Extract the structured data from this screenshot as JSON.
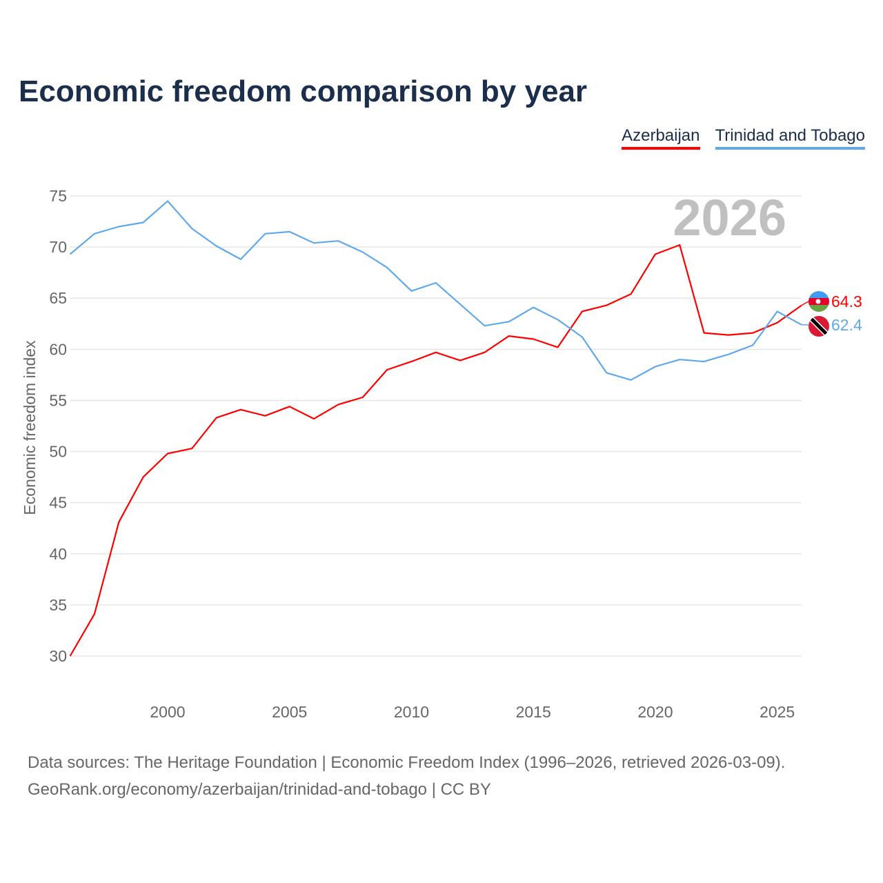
{
  "chart_data": {
    "type": "line",
    "title": "Economic freedom comparison by year",
    "xlabel": "",
    "ylabel": "Economic freedom index",
    "xlim": [
      1996,
      2026
    ],
    "ylim": [
      30,
      75
    ],
    "yticks": [
      30,
      35,
      40,
      45,
      50,
      55,
      60,
      65,
      70,
      75
    ],
    "xticks": [
      2000,
      2005,
      2010,
      2015,
      2020,
      2025
    ],
    "grid": true,
    "legend_position": "top-right",
    "year_label": "2026",
    "x": [
      1996,
      1997,
      1998,
      1999,
      2000,
      2001,
      2002,
      2003,
      2004,
      2005,
      2006,
      2007,
      2008,
      2009,
      2010,
      2011,
      2012,
      2013,
      2014,
      2015,
      2016,
      2017,
      2018,
      2019,
      2020,
      2021,
      2022,
      2023,
      2024,
      2025,
      2026
    ],
    "series": [
      {
        "name": "Azerbaijan",
        "color": "#ff0000",
        "end_label": "64.3",
        "values": [
          30.0,
          34.1,
          43.1,
          47.5,
          49.8,
          50.3,
          53.3,
          54.1,
          53.5,
          54.4,
          53.2,
          54.6,
          55.3,
          58.0,
          58.8,
          59.7,
          58.9,
          59.7,
          61.3,
          61.0,
          60.2,
          63.7,
          64.3,
          65.4,
          69.3,
          70.2,
          61.6,
          61.4,
          61.6,
          62.6,
          64.3
        ]
      },
      {
        "name": "Trinidad and Tobago",
        "color": "#5fa8ec",
        "end_label": "62.4",
        "values": [
          69.3,
          71.3,
          72.0,
          72.4,
          74.5,
          71.8,
          70.1,
          68.8,
          71.3,
          71.5,
          70.4,
          70.6,
          69.5,
          68.0,
          65.7,
          66.5,
          64.4,
          62.3,
          62.7,
          64.1,
          62.9,
          61.2,
          57.7,
          57.0,
          58.3,
          59.0,
          58.8,
          59.5,
          60.4,
          63.7,
          62.4
        ]
      }
    ]
  },
  "source": {
    "line1": "Data sources: The Heritage Foundation | Economic Freedom Index (1996–2026, retrieved 2026-03-09).",
    "line2": "GeoRank.org/economy/azerbaijan/trinidad-and-tobago | CC BY"
  }
}
